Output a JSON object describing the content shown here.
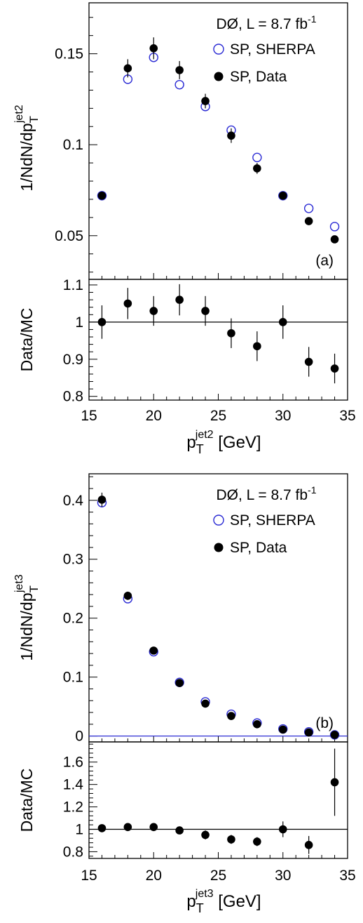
{
  "colors": {
    "data": "#000000",
    "sherpa": "#2a2ad4",
    "axis": "#000000",
    "zero_line": "#2a2ad4"
  },
  "chart_data": [
    {
      "type": "scatter",
      "panel_label": "(a)",
      "experiment_label": "DØ, L = 8.7 fb",
      "experiment_label_sup": "-1",
      "ylabel_main": "1/NdN/dp",
      "ylabel_main_sub": "T",
      "ylabel_main_sup": "jet2",
      "ylabel_ratio": "Data/MC",
      "xlabel": "p",
      "xlabel_sub": "T",
      "xlabel_sup": "jet2",
      "xlabel_suffix": " [GeV]",
      "xlim": [
        15,
        35
      ],
      "ylim_main": [
        0.026,
        0.178
      ],
      "ylim_ratio": [
        0.79,
        1.115
      ],
      "xticks": [
        15,
        20,
        25,
        30,
        35
      ],
      "yticks_main": [
        0.05,
        0.1,
        0.15
      ],
      "ytick_labels_main": [
        "0.05",
        "0.1",
        "0.15"
      ],
      "yticks_ratio": [
        0.8,
        0.9,
        1.0,
        1.1
      ],
      "ytick_labels_ratio": [
        "0.8",
        "0.9",
        "1",
        "1.1"
      ],
      "ratio_reference": 1.0,
      "legend_position": "top-right",
      "x": [
        16,
        18,
        20,
        22,
        24,
        26,
        28,
        30,
        32,
        34
      ],
      "series": [
        {
          "name": "SP, SHERPA",
          "marker": "open-circle",
          "values": [
            0.072,
            0.136,
            0.148,
            0.133,
            0.121,
            0.108,
            0.093,
            0.072,
            0.065,
            0.055
          ]
        },
        {
          "name": "SP, Data",
          "marker": "filled-circle",
          "values": [
            0.072,
            0.142,
            0.153,
            0.141,
            0.124,
            0.105,
            0.087,
            0.072,
            0.058,
            0.048
          ],
          "errors": [
            0.002,
            0.005,
            0.006,
            0.005,
            0.004,
            0.004,
            0.003,
            0.002,
            0.002,
            0.002
          ]
        }
      ],
      "ratio": {
        "name": "Data/MC",
        "values": [
          1.0,
          1.05,
          1.03,
          1.06,
          1.03,
          0.97,
          0.935,
          1.0,
          0.893,
          0.875
        ],
        "errors": [
          0.045,
          0.042,
          0.04,
          0.042,
          0.04,
          0.04,
          0.04,
          0.045,
          0.04,
          0.04
        ]
      }
    },
    {
      "type": "scatter",
      "panel_label": "(b)",
      "experiment_label": "DØ, L = 8.7 fb",
      "experiment_label_sup": "-1",
      "ylabel_main": "1/NdN/dp",
      "ylabel_main_sub": "T",
      "ylabel_main_sup": "jet3",
      "ylabel_ratio": "Data/MC",
      "xlabel": "p",
      "xlabel_sub": "T",
      "xlabel_sup": "jet3",
      "xlabel_suffix": " [GeV]",
      "xlim": [
        15,
        35
      ],
      "ylim_main": [
        -0.01,
        0.445
      ],
      "ylim_ratio": [
        0.74,
        1.78
      ],
      "xticks": [
        15,
        20,
        25,
        30,
        35
      ],
      "yticks_main": [
        0,
        0.1,
        0.2,
        0.3,
        0.4
      ],
      "ytick_labels_main": [
        "0",
        "0.1",
        "0.2",
        "0.3",
        "0.4"
      ],
      "yticks_ratio": [
        0.8,
        1.0,
        1.2,
        1.4,
        1.6
      ],
      "ytick_labels_ratio": [
        "0.8",
        "1",
        "1.2",
        "1.4",
        "1.6"
      ],
      "ratio_reference": 1.0,
      "legend_position": "top-right",
      "x": [
        16,
        18,
        20,
        22,
        24,
        26,
        28,
        30,
        32,
        34
      ],
      "series": [
        {
          "name": "SP, SHERPA",
          "marker": "open-circle",
          "values": [
            0.396,
            0.233,
            0.143,
            0.091,
            0.058,
            0.037,
            0.022,
            0.012,
            0.007,
            0.002
          ]
        },
        {
          "name": "SP, Data",
          "marker": "filled-circle",
          "values": [
            0.401,
            0.238,
            0.145,
            0.09,
            0.055,
            0.034,
            0.02,
            0.011,
            0.006,
            0.002
          ],
          "errors": [
            0.012,
            0.007,
            0.005,
            0.004,
            0.003,
            0.002,
            0.002,
            0.001,
            0.001,
            0.001
          ]
        }
      ],
      "ratio": {
        "name": "Data/MC",
        "values": [
          1.01,
          1.02,
          1.02,
          0.99,
          0.95,
          0.91,
          0.89,
          1.0,
          0.86,
          1.42
        ],
        "errors": [
          0.02,
          0.02,
          0.02,
          0.03,
          0.04,
          0.04,
          0.04,
          0.07,
          0.08,
          0.3
        ]
      }
    }
  ]
}
